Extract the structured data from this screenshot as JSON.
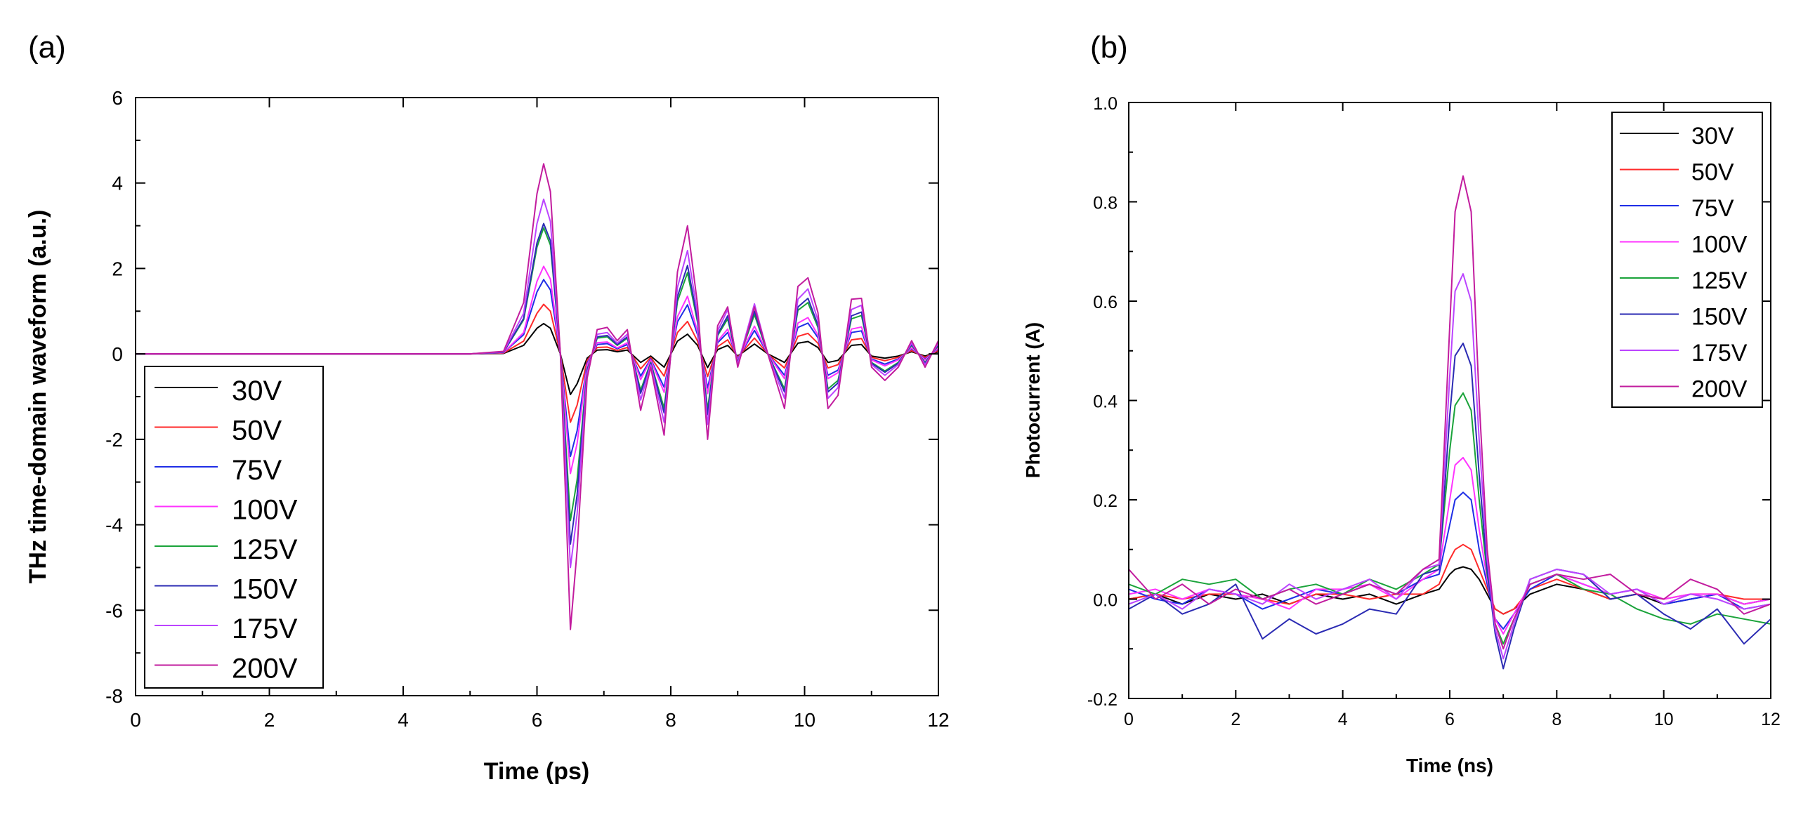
{
  "chart_data": [
    {
      "panel_label": "(a)",
      "type": "line",
      "xlabel": "Time (ps)",
      "ylabel": "THz time-domain waveform (a.u.)",
      "xlim": [
        0,
        12
      ],
      "ylim": [
        -8,
        6
      ],
      "xticks": [
        "0",
        "2",
        "4",
        "6",
        "8",
        "10",
        "12"
      ],
      "yticks": [
        "-8",
        "-6",
        "-4",
        "-2",
        "0",
        "2",
        "4",
        "6"
      ],
      "legend_position": "bottom-left",
      "x": [
        0,
        1,
        2,
        3,
        4,
        5,
        5.5,
        5.8,
        6.0,
        6.1,
        6.2,
        6.35,
        6.5,
        6.6,
        6.75,
        6.9,
        7.05,
        7.2,
        7.35,
        7.55,
        7.7,
        7.9,
        8.1,
        8.25,
        8.4,
        8.55,
        8.7,
        8.85,
        9.0,
        9.25,
        9.45,
        9.7,
        9.9,
        10.05,
        10.2,
        10.35,
        10.5,
        10.7,
        10.85,
        11.0,
        11.2,
        11.4,
        11.6,
        11.8,
        12.0
      ],
      "series": [
        {
          "name": "30V",
          "color": "#000000",
          "values": [
            0,
            0,
            0,
            0,
            0,
            0,
            0.01,
            0.2,
            0.6,
            0.71,
            0.6,
            0.0,
            -0.95,
            -0.7,
            -0.1,
            0.09,
            0.1,
            0.05,
            0.09,
            -0.2,
            -0.05,
            -0.31,
            0.3,
            0.46,
            0.2,
            -0.32,
            0.1,
            0.2,
            -0.05,
            0.23,
            0.0,
            -0.2,
            0.25,
            0.29,
            0.15,
            -0.2,
            -0.15,
            0.2,
            0.22,
            -0.05,
            -0.1,
            -0.05,
            0.05,
            -0.05,
            0.05
          ]
        },
        {
          "name": "50V",
          "color": "#ff2a2a",
          "values": [
            0,
            0,
            0,
            0,
            0,
            0,
            0.02,
            0.3,
            0.95,
            1.16,
            1.0,
            0.0,
            -1.6,
            -1.2,
            -0.15,
            0.15,
            0.16,
            0.08,
            0.15,
            -0.35,
            -0.08,
            -0.52,
            0.5,
            0.76,
            0.3,
            -0.53,
            0.17,
            0.33,
            -0.08,
            0.37,
            0.0,
            -0.33,
            0.41,
            0.48,
            0.25,
            -0.33,
            -0.25,
            0.33,
            0.36,
            -0.08,
            -0.16,
            -0.08,
            0.08,
            -0.08,
            0.08
          ]
        },
        {
          "name": "75V",
          "color": "#1f2ee6",
          "values": [
            0,
            0,
            0,
            0,
            0,
            0,
            0.03,
            0.45,
            1.45,
            1.74,
            1.5,
            0.0,
            -2.4,
            -1.8,
            -0.22,
            0.22,
            0.24,
            0.12,
            0.22,
            -0.52,
            -0.12,
            -0.78,
            0.75,
            1.15,
            0.45,
            -0.8,
            0.26,
            0.5,
            -0.12,
            0.55,
            0.0,
            -0.5,
            0.62,
            0.72,
            0.38,
            -0.5,
            -0.38,
            0.5,
            0.54,
            -0.12,
            -0.24,
            -0.12,
            0.12,
            -0.12,
            0.12
          ]
        },
        {
          "name": "100V",
          "color": "#ff33ff",
          "values": [
            0,
            0,
            0,
            0,
            0,
            0,
            0.03,
            0.5,
            1.7,
            2.05,
            1.75,
            0.0,
            -2.8,
            -2.1,
            -0.26,
            0.26,
            0.28,
            0.14,
            0.26,
            -0.6,
            -0.14,
            -0.9,
            0.87,
            1.35,
            0.52,
            -0.93,
            0.3,
            0.58,
            -0.14,
            0.65,
            0.0,
            -0.58,
            0.72,
            0.85,
            0.44,
            -0.58,
            -0.44,
            0.58,
            0.63,
            -0.14,
            -0.28,
            -0.14,
            0.14,
            -0.14,
            0.14
          ]
        },
        {
          "name": "125V",
          "color": "#1aa33a",
          "values": [
            0,
            0,
            0,
            0,
            0,
            0,
            0.04,
            0.8,
            2.5,
            2.95,
            2.55,
            0.0,
            -3.9,
            -2.95,
            -0.37,
            0.37,
            0.4,
            0.2,
            0.37,
            -0.85,
            -0.2,
            -1.27,
            1.23,
            1.9,
            0.74,
            -1.3,
            0.43,
            0.82,
            -0.2,
            0.92,
            0.0,
            -0.82,
            1.02,
            1.2,
            0.62,
            -0.82,
            -0.62,
            0.82,
            0.9,
            -0.2,
            -0.4,
            -0.2,
            0.2,
            -0.2,
            0.2
          ]
        },
        {
          "name": "150V",
          "color": "#2b2bb3",
          "values": [
            0,
            0,
            0,
            0,
            0,
            0,
            0.04,
            0.83,
            2.6,
            3.05,
            2.65,
            0.0,
            -4.45,
            -3.3,
            -0.4,
            0.4,
            0.43,
            0.22,
            0.4,
            -0.92,
            -0.22,
            -1.38,
            1.34,
            2.07,
            0.8,
            -1.42,
            0.46,
            0.89,
            -0.22,
            1.0,
            0.0,
            -0.89,
            1.1,
            1.3,
            0.68,
            -0.89,
            -0.68,
            0.89,
            0.98,
            -0.22,
            -0.43,
            -0.22,
            0.22,
            -0.22,
            0.22
          ]
        },
        {
          "name": "175V",
          "color": "#bb44ff",
          "values": [
            0,
            0,
            0,
            0,
            0,
            0,
            0.05,
            0.95,
            3.05,
            3.62,
            3.1,
            0.0,
            -5.0,
            -3.75,
            -0.46,
            0.46,
            0.5,
            0.25,
            0.46,
            -1.08,
            -0.25,
            -1.6,
            1.56,
            2.42,
            0.93,
            -1.65,
            0.54,
            1.04,
            -0.25,
            1.17,
            0.0,
            -1.04,
            1.28,
            1.52,
            0.79,
            -1.04,
            -0.79,
            1.04,
            1.14,
            -0.25,
            -0.5,
            -0.25,
            0.25,
            -0.25,
            0.25
          ]
        },
        {
          "name": "200V",
          "color": "#c21c9e",
          "values": [
            0,
            0,
            0,
            0,
            0,
            0,
            0.06,
            1.2,
            3.75,
            4.45,
            3.8,
            0.0,
            -6.45,
            -4.6,
            -0.57,
            0.57,
            0.62,
            0.31,
            0.57,
            -1.32,
            -0.31,
            -1.9,
            1.92,
            3.0,
            1.15,
            -2.0,
            0.66,
            1.1,
            -0.31,
            1.1,
            0.0,
            -1.28,
            1.58,
            1.78,
            0.97,
            -1.28,
            -0.97,
            1.28,
            1.3,
            -0.31,
            -0.62,
            -0.31,
            0.31,
            -0.31,
            0.31
          ]
        }
      ]
    },
    {
      "panel_label": "(b)",
      "type": "line",
      "xlabel": "Time (ns)",
      "ylabel": "Photocurrent (A)",
      "xlim": [
        0,
        12
      ],
      "ylim": [
        -0.2,
        1.0
      ],
      "xticks": [
        "0",
        "2",
        "4",
        "6",
        "8",
        "10",
        "12"
      ],
      "yticks": [
        "-0.2",
        "0.0",
        "0.2",
        "0.4",
        "0.6",
        "0.8",
        "1.0"
      ],
      "legend_position": "top-right",
      "x": [
        0,
        0.5,
        1,
        1.5,
        2,
        2.5,
        3,
        3.5,
        4,
        4.5,
        5,
        5.5,
        5.8,
        6.0,
        6.1,
        6.25,
        6.4,
        6.55,
        6.7,
        6.85,
        7.0,
        7.2,
        7.5,
        8,
        8.5,
        9,
        9.5,
        10,
        10.5,
        11,
        11.5,
        12
      ],
      "series": [
        {
          "name": "30V",
          "color": "#000000",
          "values": [
            0.0,
            0.01,
            -0.01,
            0.01,
            0.0,
            0.01,
            -0.01,
            0.01,
            0.0,
            0.01,
            -0.01,
            0.01,
            0.02,
            0.05,
            0.06,
            0.065,
            0.06,
            0.04,
            0.01,
            -0.02,
            -0.03,
            -0.02,
            0.01,
            0.03,
            0.02,
            0.0,
            0.01,
            -0.01,
            0.0,
            0.01,
            -0.01,
            0.0
          ]
        },
        {
          "name": "50V",
          "color": "#ff2a2a",
          "values": [
            0.0,
            0.01,
            0.0,
            0.01,
            0.01,
            0.0,
            -0.01,
            0.01,
            0.01,
            0.0,
            0.01,
            0.01,
            0.03,
            0.08,
            0.1,
            0.11,
            0.1,
            0.06,
            0.02,
            -0.02,
            -0.03,
            -0.02,
            0.02,
            0.04,
            0.02,
            0.0,
            0.01,
            0.0,
            0.01,
            0.01,
            0.0,
            0.0
          ]
        },
        {
          "name": "75V",
          "color": "#1f2ee6",
          "values": [
            0.02,
            0.0,
            -0.01,
            0.02,
            0.01,
            -0.02,
            0.0,
            0.02,
            0.01,
            0.03,
            0.01,
            0.04,
            0.05,
            0.15,
            0.2,
            0.215,
            0.2,
            0.1,
            0.03,
            -0.04,
            -0.06,
            -0.03,
            0.02,
            0.05,
            0.03,
            0.01,
            0.02,
            -0.01,
            0.0,
            0.01,
            -0.02,
            -0.01
          ]
        },
        {
          "name": "100V",
          "color": "#ff33ff",
          "values": [
            0.01,
            0.02,
            0.0,
            0.02,
            0.01,
            0.0,
            -0.02,
            0.02,
            0.02,
            0.03,
            0.0,
            0.04,
            0.06,
            0.2,
            0.27,
            0.285,
            0.26,
            0.14,
            0.04,
            -0.04,
            -0.07,
            -0.03,
            0.03,
            0.05,
            0.03,
            0.01,
            0.02,
            0.0,
            0.01,
            0.01,
            -0.01,
            0.0
          ]
        },
        {
          "name": "125V",
          "color": "#1aa33a",
          "values": [
            0.03,
            0.01,
            0.04,
            0.03,
            0.04,
            0.0,
            0.02,
            0.03,
            0.01,
            0.04,
            0.02,
            0.05,
            0.07,
            0.3,
            0.39,
            0.415,
            0.38,
            0.2,
            0.05,
            -0.05,
            -0.09,
            -0.04,
            0.03,
            0.05,
            0.02,
            0.01,
            -0.02,
            -0.04,
            -0.05,
            -0.03,
            -0.04,
            -0.05
          ]
        },
        {
          "name": "150V",
          "color": "#2b2bb3",
          "values": [
            -0.02,
            0.01,
            -0.03,
            -0.01,
            0.03,
            -0.08,
            -0.04,
            -0.07,
            -0.05,
            -0.02,
            -0.03,
            0.05,
            0.06,
            0.37,
            0.49,
            0.515,
            0.47,
            0.25,
            0.06,
            -0.07,
            -0.14,
            -0.06,
            0.04,
            0.06,
            0.05,
            0.0,
            0.01,
            -0.03,
            -0.06,
            -0.02,
            -0.09,
            -0.04
          ]
        },
        {
          "name": "175V",
          "color": "#bb44ff",
          "values": [
            -0.01,
            0.01,
            -0.02,
            0.02,
            0.01,
            -0.01,
            0.03,
            0.0,
            0.02,
            0.04,
            0.0,
            0.06,
            0.07,
            0.45,
            0.62,
            0.655,
            0.6,
            0.32,
            0.08,
            -0.06,
            -0.12,
            -0.05,
            0.04,
            0.06,
            0.05,
            0.01,
            0.02,
            -0.01,
            0.01,
            0.0,
            -0.02,
            -0.01
          ]
        },
        {
          "name": "200V",
          "color": "#c21c9e",
          "values": [
            0.06,
            0.0,
            0.03,
            -0.01,
            0.02,
            0.0,
            0.02,
            -0.01,
            0.01,
            0.03,
            0.01,
            0.06,
            0.08,
            0.55,
            0.78,
            0.852,
            0.78,
            0.4,
            0.1,
            -0.05,
            -0.1,
            -0.04,
            0.03,
            0.05,
            0.04,
            0.05,
            0.01,
            0.0,
            0.04,
            0.02,
            -0.03,
            -0.01
          ]
        }
      ]
    }
  ]
}
